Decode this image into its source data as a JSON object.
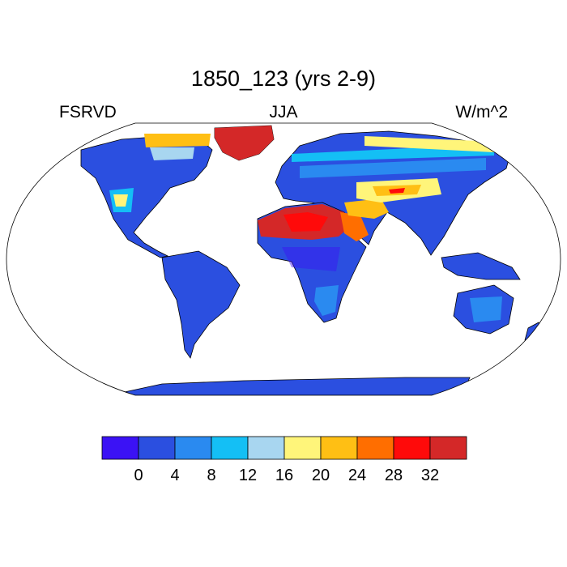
{
  "title": "1850_123 (yrs 2-9)",
  "left_label": "FSRVD",
  "center_label": "JJA",
  "right_label": "W/m^2",
  "colorbar": {
    "colors": [
      "#3b12f5",
      "#2b4fe0",
      "#2a8af0",
      "#14bff5",
      "#a8d6f0",
      "#fff57a",
      "#ffbf14",
      "#ff6e00",
      "#ff0a0a",
      "#d42828"
    ],
    "tick_labels": [
      "0",
      "4",
      "8",
      "12",
      "16",
      "20",
      "24",
      "28",
      "32"
    ]
  },
  "map_colors": {
    "ocean": "#ffffff",
    "land_base": "#2b4fe0",
    "coast": "#000000"
  }
}
